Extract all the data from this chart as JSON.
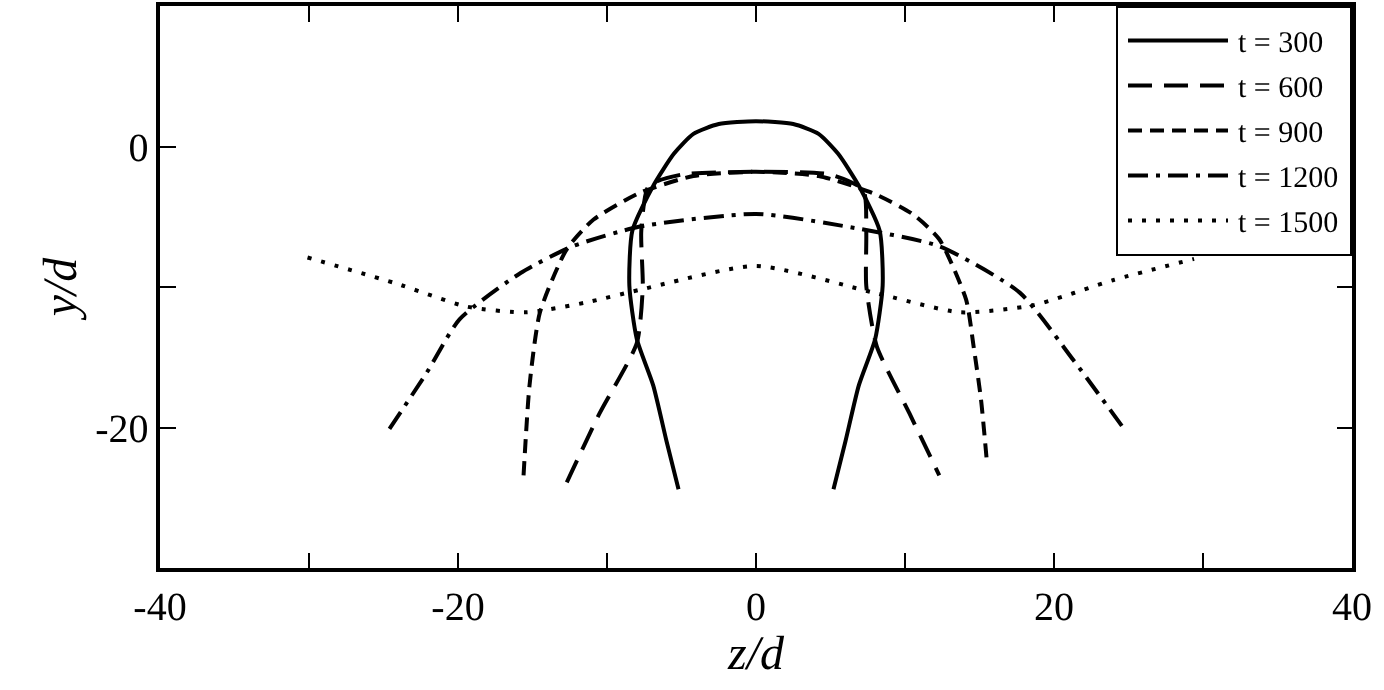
{
  "chart_data": {
    "type": "line",
    "xlabel": "z/d",
    "ylabel": "y/d",
    "xlim": [
      -40,
      40
    ],
    "ylim": [
      -30,
      10
    ],
    "xticks": [
      -40,
      {
        "value": -30,
        "label": null
      },
      -20,
      {
        "value": -10,
        "label": null
      },
      0,
      {
        "value": 10,
        "label": null
      },
      20,
      {
        "value": 30,
        "label": null
      },
      40
    ],
    "yticks": [
      {
        "value": -30,
        "label": null
      },
      -20,
      {
        "value": -10,
        "label": null
      },
      0,
      {
        "value": 10,
        "label": null
      }
    ],
    "grid": false,
    "legend": "top right",
    "marker": "none",
    "series": [
      {
        "name": "t = 300",
        "color": "#000000",
        "line_style": "solid",
        "x": [
          -5.2,
          -6.0,
          -6.9,
          -8.0,
          -8.5,
          -8.3,
          -6.9,
          -5.5,
          -4.2,
          -2.5,
          0,
          2.5,
          4.2,
          5.5,
          6.9,
          8.3,
          8.5,
          8.0,
          6.9,
          6.0,
          5.2
        ],
        "values": [
          -24.4,
          -21,
          -17,
          -13.7,
          -9.9,
          -6,
          -2.8,
          -0.5,
          0.9,
          1.6,
          1.8,
          1.6,
          0.9,
          -0.5,
          -2.8,
          -6,
          -9.9,
          -13.7,
          -17,
          -21,
          -24.4
        ]
      },
      {
        "name": "t = 600",
        "color": "#000000",
        "line_style": "long-dashed",
        "x": [
          -12.7,
          -10.5,
          -8.0,
          -7.6,
          -7.7,
          -7.2,
          -5,
          0,
          5,
          7.2,
          7.4,
          7.4,
          8.1,
          10.3,
          12.3
        ],
        "values": [
          -23.9,
          -19,
          -14,
          -10,
          -6,
          -2.8,
          -2.0,
          -1.8,
          -2.0,
          -3.1,
          -6,
          -9.9,
          -14.2,
          -19,
          -23.4
        ]
      },
      {
        "name": "t = 900",
        "color": "#000000",
        "line_style": "dashed",
        "x": [
          -15.6,
          -15.2,
          -14.5,
          -12.7,
          -10.9,
          -7.8,
          -4.2,
          0,
          4.2,
          7.8,
          10.5,
          12.3,
          14.1,
          14.6,
          15.1,
          15.5
        ],
        "values": [
          -23.4,
          -17,
          -11.8,
          -7.3,
          -5.2,
          -3.3,
          -2.1,
          -1.8,
          -2.1,
          -3.3,
          -4.8,
          -6.6,
          -10.9,
          -14.2,
          -18,
          -22.5
        ]
      },
      {
        "name": "t = 1200",
        "color": "#000000",
        "line_style": "dash-dotted",
        "x": [
          -24.6,
          -22.1,
          -19.9,
          -15.8,
          -12.3,
          -7.8,
          0,
          6.1,
          12.3,
          17.7,
          21.3,
          24.7
        ],
        "values": [
          -20.1,
          -16.1,
          -12.3,
          -9.0,
          -7.1,
          -5.7,
          -4.8,
          -5.7,
          -7.1,
          -10.4,
          -15.2,
          -20.1
        ]
      },
      {
        "name": "t = 1500",
        "color": "#000000",
        "line_style": "dotted",
        "x": [
          -30.1,
          -24.3,
          -19.4,
          -15.4,
          -11.4,
          -7.8,
          0,
          7.9,
          13.7,
          18.6,
          24,
          29.4
        ],
        "values": [
          -7.9,
          -9.7,
          -11.4,
          -11.8,
          -11.1,
          -10.2,
          -8.5,
          -10.4,
          -11.8,
          -11.3,
          -9.5,
          -8
        ]
      }
    ]
  }
}
